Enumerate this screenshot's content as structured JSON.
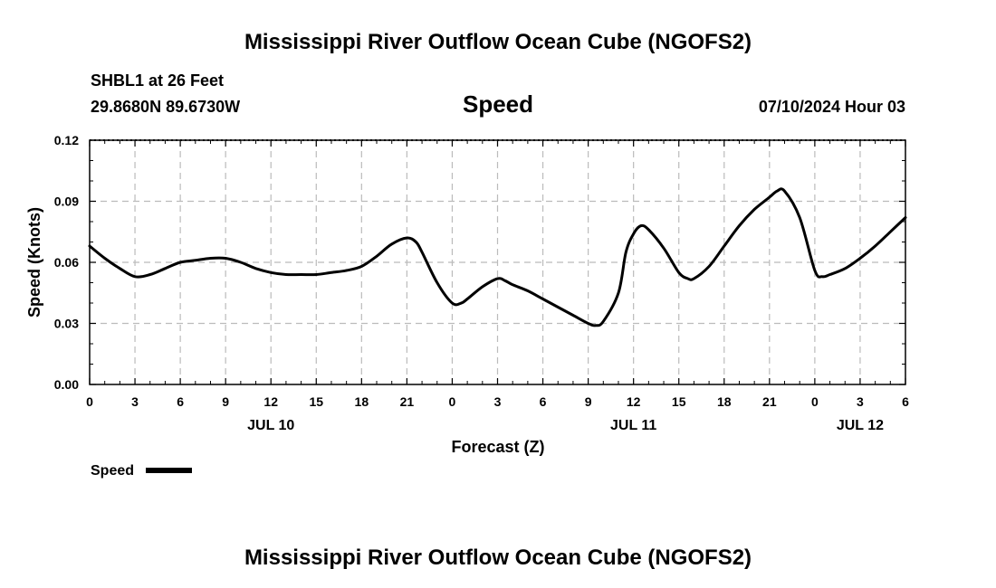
{
  "header": {
    "title": "Mississippi River Outflow Ocean Cube (NGOFS2)",
    "station": "SHBL1 at 26 Feet",
    "coords": "29.8680N  89.6730W",
    "variable": "Speed",
    "datetime": "07/10/2024 Hour 03"
  },
  "footer": {
    "title": "Mississippi River Outflow Ocean Cube (NGOFS2)"
  },
  "legend": {
    "label": "Speed"
  },
  "chart_data": {
    "type": "line",
    "title": "Speed",
    "xlabel": "Forecast (Z)",
    "ylabel": "Speed (Knots)",
    "xlim": [
      0,
      54
    ],
    "ylim": [
      0,
      0.12
    ],
    "x_ticks": [
      0,
      3,
      6,
      9,
      12,
      15,
      18,
      21,
      24,
      27,
      30,
      33,
      36,
      39,
      42,
      45,
      48,
      51,
      54
    ],
    "x_tick_labels": [
      "0",
      "3",
      "6",
      "9",
      "12",
      "15",
      "18",
      "21",
      "0",
      "3",
      "6",
      "9",
      "12",
      "15",
      "18",
      "21",
      "0",
      "3",
      "6"
    ],
    "y_ticks": [
      0,
      0.03,
      0.06,
      0.09,
      0.12
    ],
    "y_tick_labels": [
      "0.00",
      "0.03",
      "0.06",
      "0.09",
      "0.12"
    ],
    "date_labels": [
      {
        "x": 12,
        "label": "JUL 10"
      },
      {
        "x": 36,
        "label": "JUL 11"
      },
      {
        "x": 51,
        "label": "JUL 12"
      }
    ],
    "grid": true,
    "series": [
      {
        "name": "Speed",
        "x": [
          0,
          1,
          2,
          3,
          4,
          5,
          6,
          7,
          8,
          9,
          10,
          11,
          12,
          13,
          14,
          15,
          16,
          17,
          18,
          19,
          20,
          21,
          21.6,
          22,
          23,
          24,
          24.6,
          25,
          26,
          27,
          27.5,
          28,
          29,
          30,
          31,
          32,
          33,
          33.5,
          34,
          35,
          35.5,
          36,
          36.5,
          37,
          38,
          39,
          39.6,
          40,
          41,
          42,
          43,
          44,
          45,
          45.5,
          46,
          47,
          48,
          48.5,
          49,
          50,
          51,
          52,
          53,
          54
        ],
        "values": [
          0.068,
          0.062,
          0.057,
          0.053,
          0.054,
          0.057,
          0.06,
          0.061,
          0.062,
          0.062,
          0.06,
          0.057,
          0.055,
          0.054,
          0.054,
          0.054,
          0.055,
          0.056,
          0.058,
          0.063,
          0.069,
          0.072,
          0.07,
          0.065,
          0.05,
          0.04,
          0.04,
          0.042,
          0.048,
          0.052,
          0.051,
          0.049,
          0.046,
          0.042,
          0.038,
          0.034,
          0.03,
          0.029,
          0.031,
          0.045,
          0.065,
          0.074,
          0.078,
          0.076,
          0.067,
          0.055,
          0.052,
          0.052,
          0.058,
          0.068,
          0.078,
          0.086,
          0.092,
          0.095,
          0.095,
          0.082,
          0.056,
          0.053,
          0.054,
          0.057,
          0.062,
          0.068,
          0.075,
          0.082
        ]
      }
    ]
  }
}
